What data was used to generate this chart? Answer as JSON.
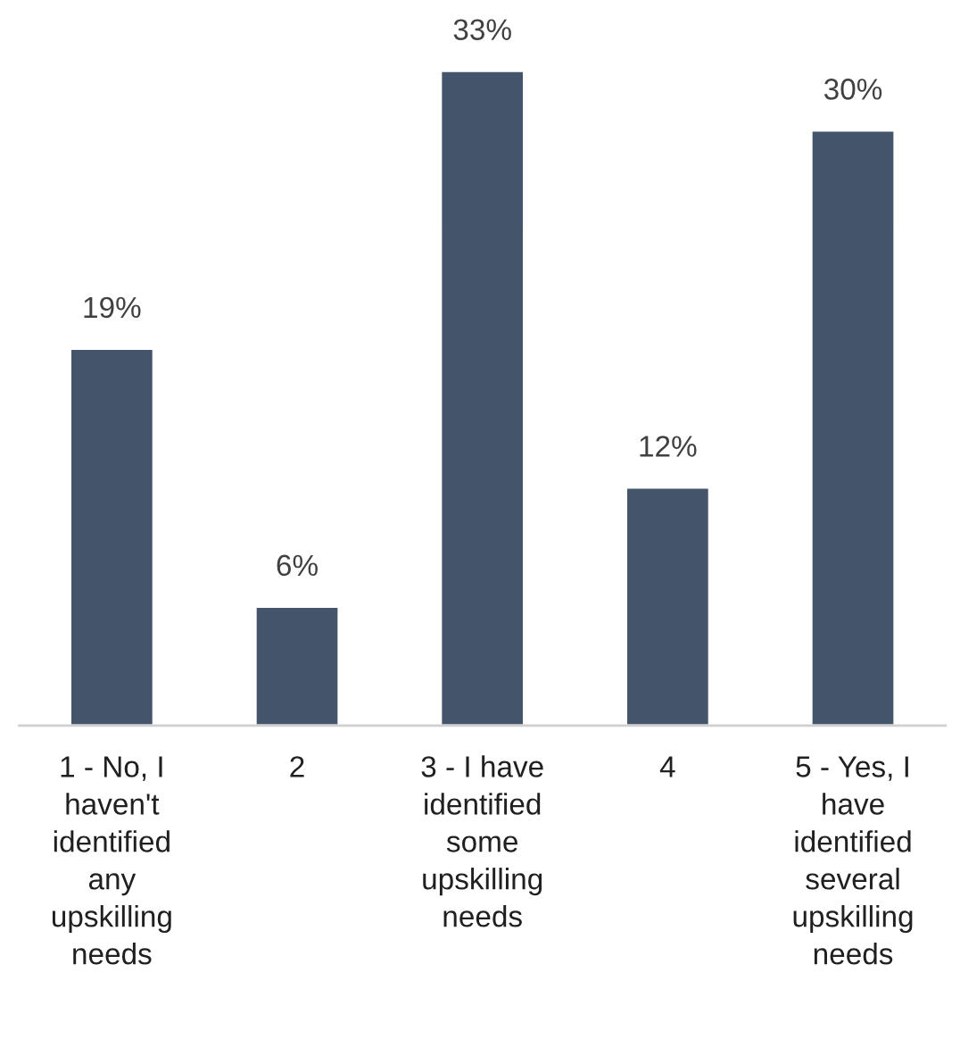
{
  "chart_data": {
    "type": "bar",
    "categories": [
      "1 - No, I haven't identified any upskilling needs",
      "2",
      "3 - I have identified some upskilling needs",
      "4",
      "5 - Yes, I have identified several upskilling needs"
    ],
    "values": [
      19,
      6,
      33,
      12,
      30
    ],
    "value_labels": [
      "19%",
      "6%",
      "33%",
      "12%",
      "30%"
    ],
    "color": "#44546a",
    "grid": false,
    "legend": false
  }
}
